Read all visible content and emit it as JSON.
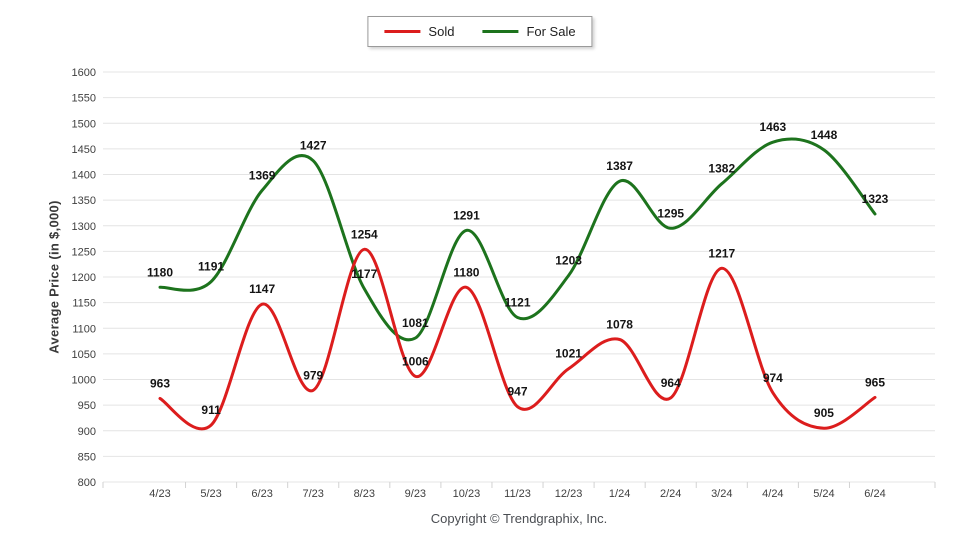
{
  "footer": "Copyright © Trendgraphix, Inc.",
  "chart_data": {
    "type": "line",
    "title": "",
    "categories": [
      "4/23",
      "5/23",
      "6/23",
      "7/23",
      "8/23",
      "9/23",
      "10/23",
      "11/23",
      "12/23",
      "1/24",
      "2/24",
      "3/24",
      "4/24",
      "5/24",
      "6/24"
    ],
    "series": [
      {
        "name": "Sold",
        "color": "#dc1d1d",
        "values": [
          963,
          911,
          1147,
          979,
          1254,
          1006,
          1180,
          947,
          1021,
          1078,
          964,
          1217,
          974,
          905,
          965
        ]
      },
      {
        "name": "For Sale",
        "color": "#1d731d",
        "values": [
          1180,
          1191,
          1369,
          1427,
          1177,
          1081,
          1291,
          1121,
          1203,
          1387,
          1295,
          1382,
          1463,
          1448,
          1323
        ]
      }
    ],
    "xlabel": "",
    "ylabel": "Average Price (in $,000)",
    "ylim": [
      800,
      1600
    ],
    "ytick_step": 50,
    "grid": true,
    "smooth_lines": true,
    "data_labels": true,
    "legend_position": "top-center",
    "gridline_color": "#e4e4e4",
    "axis_tick_color": "#d2d2d2",
    "axis_text_color": "#3f3f3f",
    "data_label_color": "#141414"
  }
}
